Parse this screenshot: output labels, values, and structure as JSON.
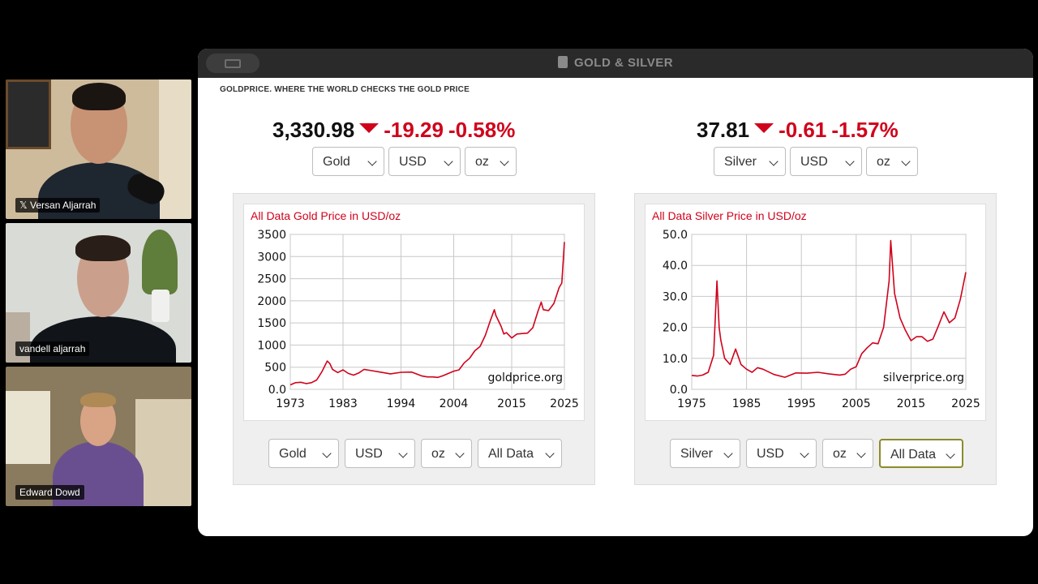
{
  "participants": [
    {
      "name": "𝕏 Versan Aljarrah"
    },
    {
      "name": "vandell aljarrah"
    },
    {
      "name": "Edward Dowd"
    }
  ],
  "window": {
    "title": "GOLD & SILVER"
  },
  "page": {
    "brand": "GOLDPRICE. WHERE THE WORLD CHECKS THE GOLD PRICE"
  },
  "gold": {
    "price": "3,330.98",
    "change": "-19.29",
    "percent": "-0.58%",
    "selectors": [
      "Gold",
      "USD",
      "oz"
    ],
    "chart_controls": [
      "Gold",
      "USD",
      "oz",
      "All Data"
    ]
  },
  "silver": {
    "price": "37.81",
    "change": "-0.61",
    "percent": "-1.57%",
    "selectors": [
      "Silver",
      "USD",
      "oz"
    ],
    "chart_controls": [
      "Silver",
      "USD",
      "oz",
      "All Data"
    ]
  },
  "colors": {
    "accent_red": "#d0021b",
    "line": "#d0021b"
  },
  "icons": {
    "down": "triangle-down-icon",
    "dropdown": "chevron-down-icon"
  },
  "chart_data": [
    {
      "type": "line",
      "title": "All Data Gold Price in USD/oz",
      "watermark": "goldprice.org",
      "xlim": [
        1973,
        2025
      ],
      "ylim": [
        0,
        3500
      ],
      "x_ticks": [
        "1973",
        "1983",
        "1994",
        "2004",
        "2015",
        "2025"
      ],
      "y_ticks": [
        "0.0",
        "500",
        "1000",
        "1500",
        "2000",
        "2500",
        "3000",
        "3500"
      ],
      "grid": true,
      "x": [
        1973,
        1974,
        1975,
        1976,
        1977,
        1978,
        1979,
        1980,
        1980.5,
        1981,
        1982,
        1983,
        1984,
        1985,
        1986,
        1987,
        1988,
        1990,
        1992,
        1994,
        1996,
        1998,
        1999,
        2000,
        2001,
        2002,
        2003,
        2004,
        2005,
        2006,
        2007,
        2008,
        2009,
        2010,
        2011,
        2011.7,
        2012,
        2013,
        2013.5,
        2014,
        2015,
        2016,
        2017,
        2018,
        2019,
        2020,
        2020.6,
        2021,
        2022,
        2023,
        2024,
        2024.5,
        2025
      ],
      "values": [
        100,
        150,
        160,
        130,
        150,
        210,
        400,
        640,
        580,
        450,
        380,
        440,
        360,
        320,
        370,
        450,
        430,
        390,
        350,
        385,
        390,
        300,
        280,
        280,
        270,
        310,
        360,
        410,
        440,
        600,
        700,
        870,
        970,
        1220,
        1570,
        1800,
        1670,
        1420,
        1250,
        1280,
        1160,
        1250,
        1260,
        1270,
        1390,
        1770,
        1970,
        1800,
        1780,
        1940,
        2300,
        2400,
        3330
      ]
    },
    {
      "type": "line",
      "title": "All Data Silver Price in USD/oz",
      "watermark": "silverprice.org",
      "xlim": [
        1975,
        2025
      ],
      "ylim": [
        0,
        50
      ],
      "x_ticks": [
        "1975",
        "1985",
        "1995",
        "2005",
        "2015",
        "2025"
      ],
      "y_ticks": [
        "0.0",
        "10.0",
        "20.0",
        "30.0",
        "40.0",
        "50.0"
      ],
      "grid": true,
      "x": [
        1975,
        1976,
        1977,
        1978,
        1979,
        1979.6,
        1980,
        1980.3,
        1981,
        1982,
        1983,
        1984,
        1985,
        1986,
        1987,
        1988,
        1990,
        1992,
        1994,
        1996,
        1998,
        2000,
        2002,
        2003,
        2004,
        2005,
        2006,
        2007,
        2008,
        2009,
        2010,
        2011,
        2011.3,
        2012,
        2013,
        2014,
        2015,
        2016,
        2017,
        2018,
        2019,
        2020,
        2021,
        2022,
        2023,
        2024,
        2025
      ],
      "values": [
        4.5,
        4.3,
        4.6,
        5.5,
        11,
        35,
        20,
        16,
        10,
        8,
        13,
        8,
        6.5,
        5.5,
        7,
        6.5,
        4.8,
        3.9,
        5.3,
        5.2,
        5.5,
        5.0,
        4.6,
        4.9,
        6.5,
        7.3,
        11.5,
        13.4,
        15,
        14.7,
        20,
        35,
        48,
        31,
        23,
        19,
        15.7,
        17,
        17,
        15.5,
        16.2,
        20.5,
        25,
        21.5,
        23,
        29,
        37.8
      ]
    }
  ]
}
